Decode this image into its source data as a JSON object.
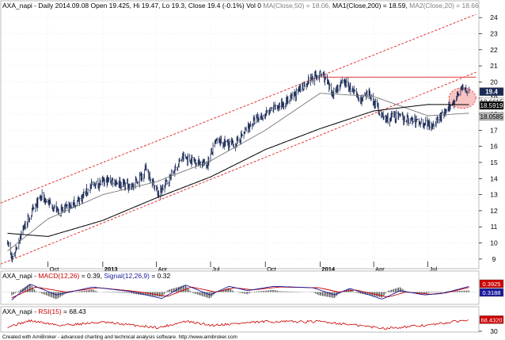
{
  "header": {
    "symbol": "AXA_napi",
    "info": " - Daily 2014.09.08  Open 19.425, Hi 19.47, Lo 19.3, Close 19.4 (-0.1%) Vol 0 ",
    "ma50": "MA(Close,50) = 18.06,",
    "ma1": " MA1(Close,200) = 18.59,",
    "ma2": " MA2(Close,20) = 18.66"
  },
  "macd_header": {
    "symbol": "AXA_napi",
    "sep": " - ",
    "macd": "MACD(12,26)",
    "macd_val": " = 0.39, ",
    "signal": "Signal(12,26,9)",
    "signal_val": " = 0.32"
  },
  "rsi_header": {
    "symbol": "AXA_napi",
    "sep": " - ",
    "rsi": "RSI(15)",
    "rsi_val": " = 68.43"
  },
  "footer": "Created with AmiBroker - advanced charting and technical analysis software. http://www.amibroker.com",
  "colors": {
    "price": "#1a2a55",
    "ma_long": "#000000",
    "ma_short": "#777777",
    "channel": "#e02020",
    "resistance": "#e02020",
    "macd": "#1a1a9a",
    "signal": "#cc0000",
    "rsi": "#cc0000",
    "ellipse_fill": "#f6b0b0"
  },
  "chart_data": [
    {
      "type": "line",
      "title": "AXA_napi - Daily 2014.09.08",
      "ylim": [
        8.5,
        24.5
      ],
      "y_ticks": [
        9,
        10,
        11,
        12,
        13,
        14,
        15,
        16,
        17,
        18,
        19,
        20,
        21,
        22,
        23,
        24
      ],
      "x_labels": [
        "Oct",
        "2013",
        "Apr",
        "Jul",
        "Oct",
        "2014",
        "Apr",
        "Jul"
      ],
      "last_values": {
        "close": "19.4",
        "ma20": "18.6615",
        "ma200": "18.5919",
        "ma50": "18.0585"
      },
      "close_anchors": [
        {
          "d": "2012-07-25",
          "v": 10.2
        },
        {
          "d": "2012-08-01",
          "v": 8.9
        },
        {
          "d": "2012-08-20",
          "v": 10.9
        },
        {
          "d": "2012-09-20",
          "v": 12.9
        },
        {
          "d": "2012-10-20",
          "v": 11.9
        },
        {
          "d": "2012-11-20",
          "v": 12.6
        },
        {
          "d": "2012-12-15",
          "v": 13.6
        },
        {
          "d": "2013-01-15",
          "v": 13.9
        },
        {
          "d": "2013-02-20",
          "v": 13.5
        },
        {
          "d": "2013-03-15",
          "v": 14.6
        },
        {
          "d": "2013-04-05",
          "v": 13.0
        },
        {
          "d": "2013-05-15",
          "v": 15.3
        },
        {
          "d": "2013-06-25",
          "v": 14.9
        },
        {
          "d": "2013-07-10",
          "v": 16.3
        },
        {
          "d": "2013-08-10",
          "v": 16.1
        },
        {
          "d": "2013-09-10",
          "v": 17.5
        },
        {
          "d": "2013-10-10",
          "v": 18.2
        },
        {
          "d": "2013-11-15",
          "v": 19.0
        },
        {
          "d": "2013-12-15",
          "v": 20.2
        },
        {
          "d": "2014-01-05",
          "v": 20.5
        },
        {
          "d": "2014-01-20",
          "v": 19.3
        },
        {
          "d": "2014-02-10",
          "v": 20.0
        },
        {
          "d": "2014-03-10",
          "v": 18.9
        },
        {
          "d": "2014-03-25",
          "v": 19.2
        },
        {
          "d": "2014-04-20",
          "v": 17.6
        },
        {
          "d": "2014-05-05",
          "v": 17.9
        },
        {
          "d": "2014-06-05",
          "v": 17.6
        },
        {
          "d": "2014-07-10",
          "v": 17.4
        },
        {
          "d": "2014-08-05",
          "v": 18.3
        },
        {
          "d": "2014-08-25",
          "v": 19.6
        },
        {
          "d": "2014-09-08",
          "v": 19.4
        }
      ],
      "ma200_anchors": [
        {
          "d": "2012-07-25",
          "v": 10.6
        },
        {
          "d": "2012-10-01",
          "v": 10.4
        },
        {
          "d": "2013-01-01",
          "v": 11.4
        },
        {
          "d": "2013-04-01",
          "v": 12.8
        },
        {
          "d": "2013-07-01",
          "v": 14.1
        },
        {
          "d": "2013-10-01",
          "v": 15.8
        },
        {
          "d": "2014-01-01",
          "v": 17.1
        },
        {
          "d": "2014-04-01",
          "v": 18.2
        },
        {
          "d": "2014-07-01",
          "v": 18.6
        },
        {
          "d": "2014-09-08",
          "v": 18.59
        }
      ],
      "ma50_anchors": [
        {
          "d": "2012-07-25",
          "v": 9.5
        },
        {
          "d": "2012-10-01",
          "v": 11.5
        },
        {
          "d": "2013-01-01",
          "v": 13.0
        },
        {
          "d": "2013-04-01",
          "v": 13.8
        },
        {
          "d": "2013-07-01",
          "v": 15.1
        },
        {
          "d": "2013-10-01",
          "v": 17.0
        },
        {
          "d": "2014-01-01",
          "v": 19.3
        },
        {
          "d": "2014-04-01",
          "v": 19.1
        },
        {
          "d": "2014-07-01",
          "v": 17.9
        },
        {
          "d": "2014-09-08",
          "v": 18.06
        }
      ],
      "channel_lines": [
        {
          "from": {
            "d": "2012-07-01",
            "v": 12.3
          },
          "to": {
            "d": "2014-09-20",
            "v": 24.2
          }
        },
        {
          "from": {
            "d": "2012-07-01",
            "v": 8.5
          },
          "to": {
            "d": "2014-09-20",
            "v": 20.6
          }
        }
      ],
      "resistance": {
        "from": "2014-01-03",
        "to": "2014-09-20",
        "v": 20.3
      }
    },
    {
      "type": "line",
      "title": "MACD(12,26)",
      "ylim": [
        -0.8,
        0.8
      ],
      "last_values": {
        "macd": "0.3925",
        "signal": "0.3188"
      },
      "macd_anchors": [
        {
          "d": "2012-08-01",
          "v": -0.55
        },
        {
          "d": "2012-09-01",
          "v": 0.55
        },
        {
          "d": "2012-10-15",
          "v": -0.2
        },
        {
          "d": "2012-12-15",
          "v": 0.35
        },
        {
          "d": "2013-02-15",
          "v": 0.05
        },
        {
          "d": "2013-04-10",
          "v": -0.45
        },
        {
          "d": "2013-05-20",
          "v": 0.5
        },
        {
          "d": "2013-06-30",
          "v": -0.2
        },
        {
          "d": "2013-08-01",
          "v": 0.4
        },
        {
          "d": "2013-09-01",
          "v": 0.1
        },
        {
          "d": "2013-10-15",
          "v": 0.4
        },
        {
          "d": "2013-12-20",
          "v": 0.3
        },
        {
          "d": "2014-01-25",
          "v": -0.2
        },
        {
          "d": "2014-02-20",
          "v": 0.25
        },
        {
          "d": "2014-04-15",
          "v": -0.5
        },
        {
          "d": "2014-05-15",
          "v": 0.1
        },
        {
          "d": "2014-06-25",
          "v": -0.2
        },
        {
          "d": "2014-07-25",
          "v": -0.1
        },
        {
          "d": "2014-09-08",
          "v": 0.39
        }
      ],
      "signal_anchors": [
        {
          "d": "2012-08-01",
          "v": -0.4
        },
        {
          "d": "2012-09-10",
          "v": 0.35
        },
        {
          "d": "2012-11-01",
          "v": 0.0
        },
        {
          "d": "2012-12-25",
          "v": 0.3
        },
        {
          "d": "2013-02-25",
          "v": 0.05
        },
        {
          "d": "2013-04-20",
          "v": -0.3
        },
        {
          "d": "2013-05-30",
          "v": 0.35
        },
        {
          "d": "2013-07-10",
          "v": 0.0
        },
        {
          "d": "2013-08-10",
          "v": 0.3
        },
        {
          "d": "2013-09-10",
          "v": 0.15
        },
        {
          "d": "2013-10-25",
          "v": 0.35
        },
        {
          "d": "2013-12-30",
          "v": 0.3
        },
        {
          "d": "2014-02-01",
          "v": 0.0
        },
        {
          "d": "2014-03-01",
          "v": 0.15
        },
        {
          "d": "2014-04-25",
          "v": -0.35
        },
        {
          "d": "2014-05-25",
          "v": 0.0
        },
        {
          "d": "2014-07-05",
          "v": -0.15
        },
        {
          "d": "2014-08-01",
          "v": -0.05
        },
        {
          "d": "2014-09-08",
          "v": 0.32
        }
      ]
    },
    {
      "type": "line",
      "title": "RSI(15)",
      "ylim": [
        30,
        80
      ],
      "y_ticks": [
        30
      ],
      "last_values": {
        "rsi": "68.4320"
      },
      "rsi_anchors": [
        {
          "d": "2012-07-25",
          "v": 45
        },
        {
          "d": "2012-09-01",
          "v": 65
        },
        {
          "d": "2012-10-20",
          "v": 50
        },
        {
          "d": "2013-01-01",
          "v": 60
        },
        {
          "d": "2013-04-05",
          "v": 42
        },
        {
          "d": "2013-05-20",
          "v": 63
        },
        {
          "d": "2013-07-01",
          "v": 50
        },
        {
          "d": "2013-10-01",
          "v": 62
        },
        {
          "d": "2014-01-05",
          "v": 62
        },
        {
          "d": "2014-04-20",
          "v": 40
        },
        {
          "d": "2014-07-01",
          "v": 50
        },
        {
          "d": "2014-09-08",
          "v": 68.43
        }
      ]
    }
  ]
}
